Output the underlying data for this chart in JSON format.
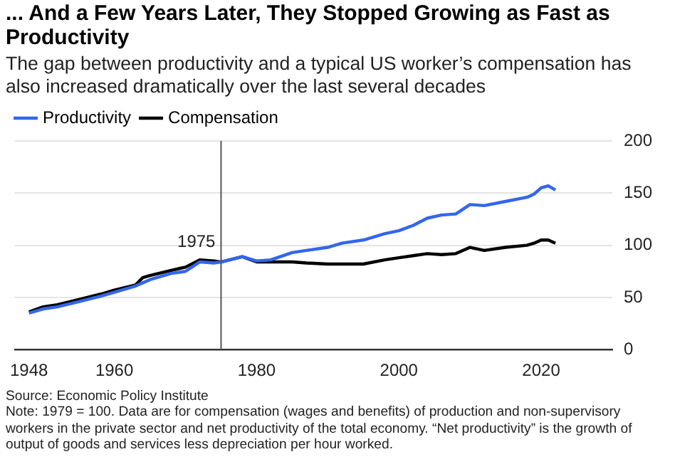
{
  "chart_data": {
    "type": "line",
    "title": "... And a Few Years Later, They Stopped Growing as Fast as Productivity",
    "subtitle": "The gap between productivity and a typical US worker’s compensation has also increased dramatically over the last several decades",
    "x": [
      1948,
      1950,
      1952,
      1955,
      1958,
      1960,
      1963,
      1964,
      1965,
      1968,
      1970,
      1972,
      1974,
      1975,
      1978,
      1980,
      1982,
      1985,
      1987,
      1990,
      1992,
      1995,
      1998,
      2000,
      2002,
      2004,
      2006,
      2008,
      2010,
      2012,
      2015,
      2018,
      2019,
      2020,
      2021,
      2022
    ],
    "series": [
      {
        "name": "Productivity",
        "color": "#3366ee",
        "values": [
          35,
          39,
          41,
          46,
          51,
          55,
          61,
          64,
          67,
          73,
          75,
          84,
          83,
          84,
          89,
          85,
          86,
          93,
          95,
          98,
          102,
          105,
          111,
          114,
          119,
          126,
          129,
          130,
          139,
          138,
          142,
          146,
          149,
          155,
          157,
          153
        ]
      },
      {
        "name": "Compensation",
        "color": "#000000",
        "values": [
          36,
          41,
          43,
          48,
          53,
          57,
          62,
          69,
          71,
          76,
          79,
          86,
          85,
          84,
          89,
          84,
          84,
          84,
          83,
          82,
          82,
          82,
          86,
          88,
          90,
          92,
          91,
          92,
          98,
          95,
          98,
          100,
          102,
          105,
          105,
          102
        ]
      }
    ],
    "xlim": [
      1946,
      2030
    ],
    "xticks": [
      1948,
      1960,
      1980,
      2000,
      2020
    ],
    "ylim": [
      0,
      200
    ],
    "yticks": [
      0,
      50,
      100,
      150,
      200
    ],
    "grid": "y",
    "legend": "top left",
    "marker": "none",
    "line_style": "solid",
    "ref_lines": [
      {
        "axis": "x",
        "value": 1975,
        "label": "1975",
        "color": "#555555"
      }
    ],
    "annotations": [
      "Source: Economic Policy Institute",
      "Note: 1979 = 100. Data are for compensation (wages and benefits) of production and non-supervisory workers in the private sector and net productivity of the total economy. “Net productivity” is the growth of output of goods and services less depreciation per hour worked."
    ]
  }
}
